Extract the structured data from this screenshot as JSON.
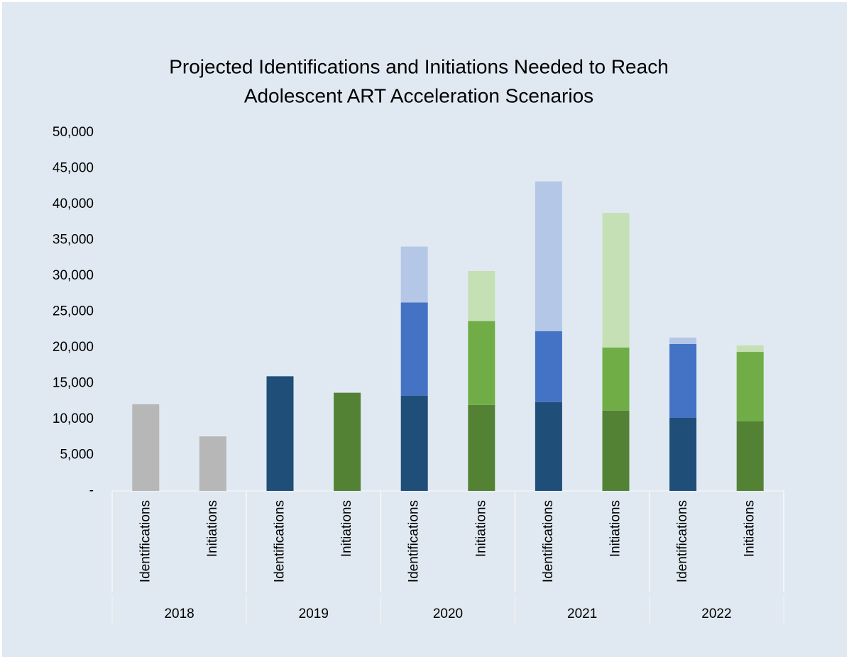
{
  "chart_data": {
    "type": "stacked_bar",
    "title": [
      "Projected Identifications and Initiations Needed to Reach",
      "Adolescent ART Acceleration Scenarios"
    ],
    "categories": [
      "Identifications",
      "Initiations",
      "Identifications",
      "Initiations",
      "Identifications",
      "Initiations",
      "Identifications",
      "Initiations",
      "Identifications",
      "Initiations"
    ],
    "groups": [
      "2018",
      "2019",
      "2020",
      "2021",
      "2022"
    ],
    "series": [
      {
        "values": [
          12100,
          7600,
          16000,
          13700,
          13300,
          12000,
          12400,
          11200,
          10200,
          9700
        ],
        "colors": [
          "#b7b7b7",
          "#b7b7b7",
          "#1f4e79",
          "#548235",
          "#1f4e79",
          "#548235",
          "#1f4e79",
          "#548235",
          "#1f4e79",
          "#548235"
        ]
      },
      {
        "values": [
          null,
          null,
          null,
          null,
          13000,
          11700,
          9900,
          8800,
          10300,
          9700
        ],
        "colors": [
          "#b7b7b7",
          "#b7b7b7",
          "#4472c4",
          "#70ad47",
          "#4472c4",
          "#70ad47",
          "#4472c4",
          "#70ad47",
          "#4472c4",
          "#70ad47"
        ]
      },
      {
        "values": [
          null,
          null,
          null,
          null,
          7800,
          7000,
          20900,
          18800,
          900,
          900
        ],
        "colors": [
          "#b7b7b7",
          "#b7b7b7",
          "#b4c7e7",
          "#c5e0b4",
          "#b4c7e7",
          "#c5e0b4",
          "#b4c7e7",
          "#c5e0b4",
          "#b4c7e7",
          "#c5e0b4"
        ]
      }
    ],
    "ylim": [
      0,
      50000
    ],
    "yticks": [
      {
        "value": 0,
        "label": "-"
      },
      {
        "value": 5000,
        "label": "5,000"
      },
      {
        "value": 10000,
        "label": "10,000"
      },
      {
        "value": 15000,
        "label": "15,000"
      },
      {
        "value": 20000,
        "label": "20,000"
      },
      {
        "value": 25000,
        "label": "25,000"
      },
      {
        "value": 30000,
        "label": "30,000"
      },
      {
        "value": 35000,
        "label": "35,000"
      },
      {
        "value": 40000,
        "label": "40,000"
      },
      {
        "value": 45000,
        "label": "45,000"
      },
      {
        "value": 50000,
        "label": "50,000"
      }
    ],
    "grid": false
  }
}
